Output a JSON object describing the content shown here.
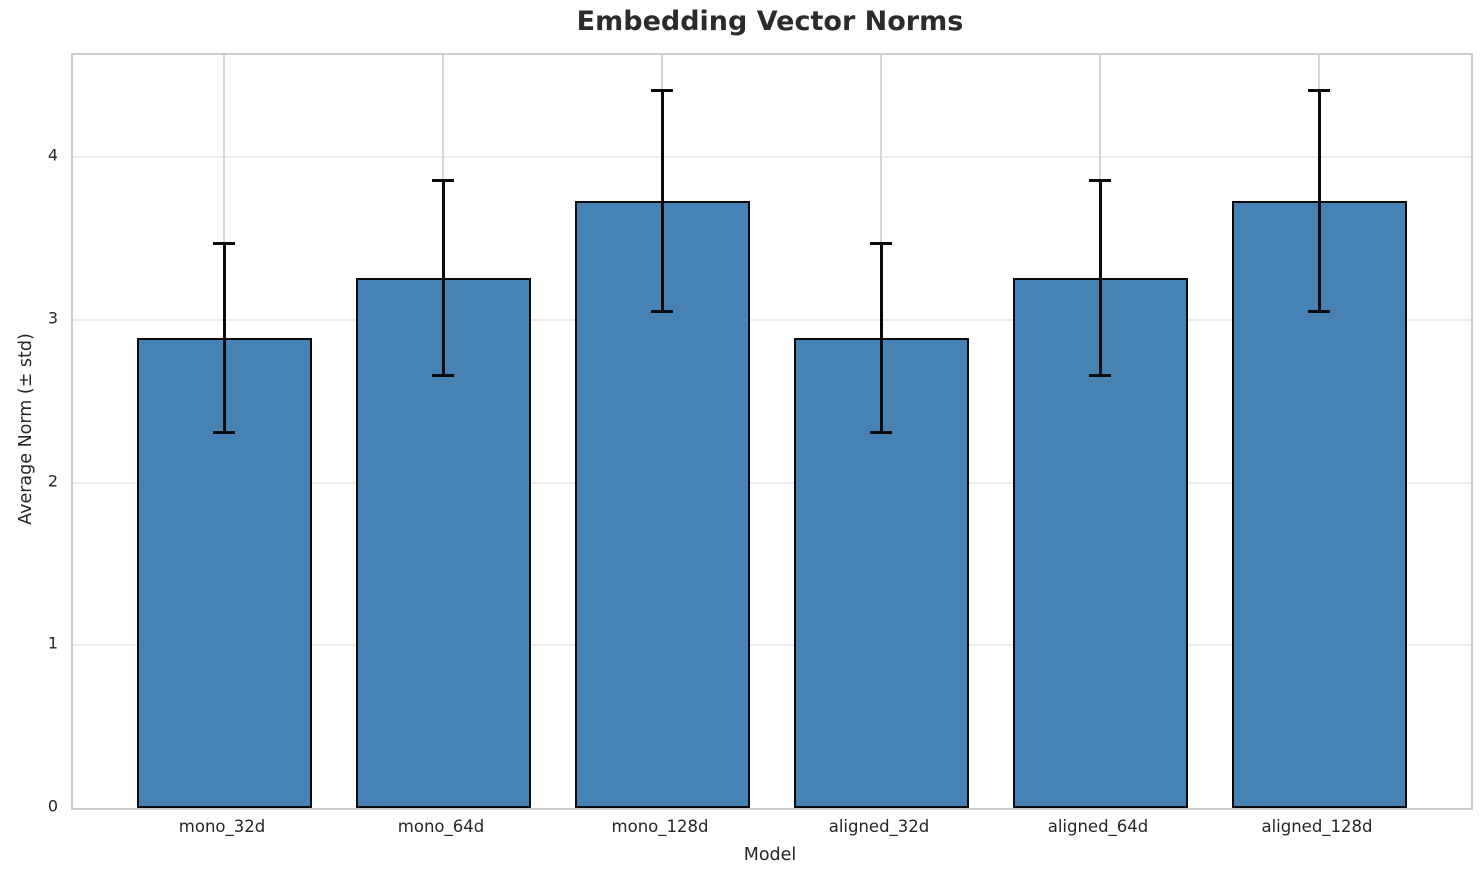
{
  "chart_data": {
    "type": "bar",
    "title": "Embedding Vector Norms",
    "xlabel": "Model",
    "ylabel": "Average Norm (± std)",
    "categories": [
      "mono_32d",
      "mono_64d",
      "mono_128d",
      "aligned_32d",
      "aligned_64d",
      "aligned_128d"
    ],
    "series": [
      {
        "name": "Average Norm",
        "values": [
          2.89,
          3.26,
          3.73,
          2.89,
          3.26,
          3.73
        ],
        "errors": [
          0.58,
          0.6,
          0.68,
          0.58,
          0.6,
          0.68
        ]
      }
    ],
    "ylim": [
      0,
      4.63
    ],
    "yticks": [
      0,
      1,
      2,
      3,
      4
    ],
    "grid": "on",
    "legend": "none",
    "colors": {
      "bar_fill": "#4682b4",
      "bar_edge": "#0a0a0a",
      "error_bar": "#0a0a0a",
      "grid_horizontal": "#ededed",
      "grid_vertical": "#d6d6d6",
      "spine": "#cccccc",
      "text": "#262626",
      "title_text": "#2b2b2b",
      "background": "#ffffff"
    }
  }
}
